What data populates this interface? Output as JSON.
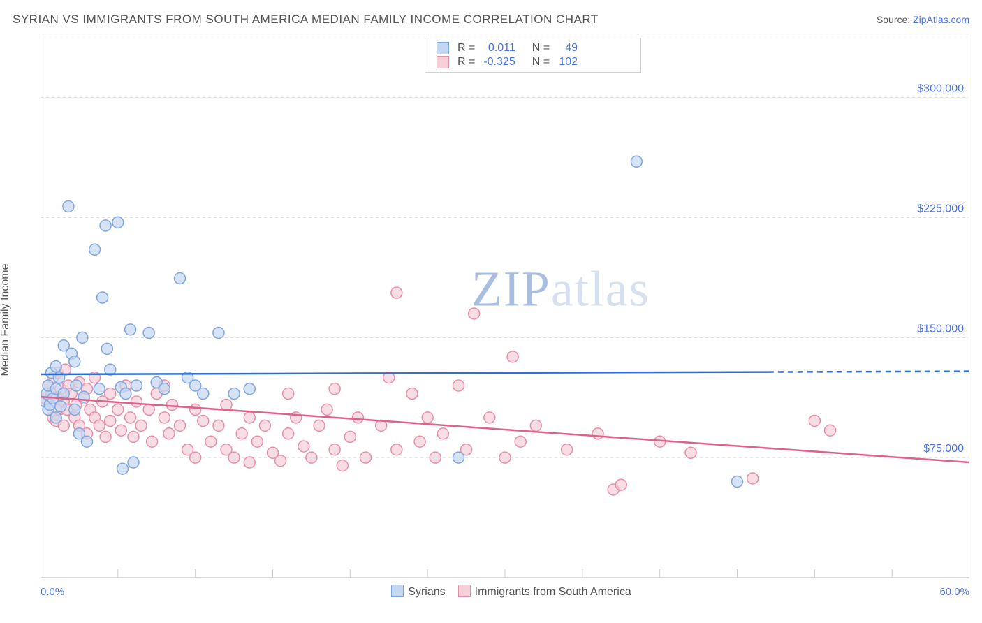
{
  "header": {
    "title": "SYRIAN VS IMMIGRANTS FROM SOUTH AMERICA MEDIAN FAMILY INCOME CORRELATION CHART",
    "source_prefix": "Source: ",
    "source_link": "ZipAtlas.com"
  },
  "chart": {
    "type": "scatter",
    "ylabel": "Median Family Income",
    "xlim": [
      0,
      60
    ],
    "ylim": [
      0,
      340000
    ],
    "y_gridlines": [
      75000,
      150000,
      225000,
      300000
    ],
    "y_tick_labels": [
      "$75,000",
      "$150,000",
      "$225,000",
      "$300,000"
    ],
    "x_tick_positions": [
      0,
      5,
      10,
      15,
      20,
      25,
      30,
      35,
      40,
      45,
      50,
      55
    ],
    "x_min_label": "0.0%",
    "x_max_label": "60.0%",
    "grid_color": "#d9d9d9",
    "axis_color": "#cccccc",
    "background_color": "#ffffff",
    "tick_label_color": "#4a74e8",
    "label_fontsize": 16,
    "marker_radius": 8,
    "marker_stroke_width": 1.5,
    "trend_line_width": 2.5,
    "watermark": "ZIPatlas",
    "series": [
      {
        "key": "syrians",
        "label": "Syrians",
        "fill": "#c4d7f2",
        "stroke": "#7ea6e0",
        "line_color": "#2f6fd0",
        "R": "0.011",
        "N": "49",
        "trend": {
          "x1": 0,
          "y1": 127000,
          "x2": 47,
          "y2": 128500,
          "dash_to_x": 60
        },
        "points": [
          [
            0.3,
            110000
          ],
          [
            0.4,
            115000
          ],
          [
            0.5,
            120000
          ],
          [
            0.5,
            105000
          ],
          [
            0.6,
            108000
          ],
          [
            0.7,
            128000
          ],
          [
            0.8,
            112000
          ],
          [
            1.0,
            118000
          ],
          [
            1.0,
            100000
          ],
          [
            1.2,
            125000
          ],
          [
            1.3,
            107000
          ],
          [
            1.5,
            115000
          ],
          [
            1.5,
            145000
          ],
          [
            1.8,
            232000
          ],
          [
            2.0,
            140000
          ],
          [
            2.2,
            135000
          ],
          [
            2.3,
            120000
          ],
          [
            2.5,
            90000
          ],
          [
            2.7,
            150000
          ],
          [
            2.8,
            113000
          ],
          [
            3.0,
            85000
          ],
          [
            3.5,
            205000
          ],
          [
            3.8,
            118000
          ],
          [
            4.0,
            175000
          ],
          [
            4.2,
            220000
          ],
          [
            4.3,
            143000
          ],
          [
            4.5,
            130000
          ],
          [
            5.0,
            222000
          ],
          [
            5.2,
            119000
          ],
          [
            5.3,
            68000
          ],
          [
            5.5,
            115000
          ],
          [
            5.8,
            155000
          ],
          [
            6.0,
            72000
          ],
          [
            6.2,
            120000
          ],
          [
            7.0,
            153000
          ],
          [
            7.5,
            122000
          ],
          [
            8.0,
            118000
          ],
          [
            9.0,
            187000
          ],
          [
            9.5,
            125000
          ],
          [
            10.0,
            120000
          ],
          [
            10.5,
            115000
          ],
          [
            11.5,
            153000
          ],
          [
            12.5,
            115000
          ],
          [
            13.5,
            118000
          ],
          [
            27.0,
            75000
          ],
          [
            38.5,
            260000
          ],
          [
            45.0,
            60000
          ],
          [
            1.0,
            132000
          ],
          [
            2.2,
            105000
          ]
        ]
      },
      {
        "key": "south_america",
        "label": "Immigrants from South America",
        "fill": "#f7cfd9",
        "stroke": "#e88fa8",
        "line_color": "#e06088",
        "R": "-0.325",
        "N": "102",
        "trend": {
          "x1": 0,
          "y1": 113000,
          "x2": 60,
          "y2": 72000
        },
        "points": [
          [
            0.3,
            112000
          ],
          [
            0.5,
            120000
          ],
          [
            0.6,
            108000
          ],
          [
            0.7,
            115000
          ],
          [
            0.8,
            100000
          ],
          [
            0.8,
            125000
          ],
          [
            1.0,
            113000
          ],
          [
            1.0,
            98000
          ],
          [
            1.1,
            128000
          ],
          [
            1.2,
            105000
          ],
          [
            1.3,
            118000
          ],
          [
            1.5,
            95000
          ],
          [
            1.5,
            110000
          ],
          [
            1.6,
            130000
          ],
          [
            1.7,
            105000
          ],
          [
            1.8,
            120000
          ],
          [
            2.0,
            115000
          ],
          [
            2.2,
            100000
          ],
          [
            2.3,
            108000
          ],
          [
            2.5,
            122000
          ],
          [
            2.5,
            95000
          ],
          [
            2.8,
            112000
          ],
          [
            3.0,
            118000
          ],
          [
            3.0,
            90000
          ],
          [
            3.2,
            105000
          ],
          [
            3.5,
            125000
          ],
          [
            3.5,
            100000
          ],
          [
            3.8,
            95000
          ],
          [
            4.0,
            110000
          ],
          [
            4.2,
            88000
          ],
          [
            4.5,
            115000
          ],
          [
            4.5,
            98000
          ],
          [
            5.0,
            105000
          ],
          [
            5.2,
            92000
          ],
          [
            5.5,
            120000
          ],
          [
            5.8,
            100000
          ],
          [
            6.0,
            88000
          ],
          [
            6.2,
            110000
          ],
          [
            6.5,
            95000
          ],
          [
            7.0,
            105000
          ],
          [
            7.2,
            85000
          ],
          [
            7.5,
            115000
          ],
          [
            8.0,
            100000
          ],
          [
            8.3,
            90000
          ],
          [
            8.5,
            108000
          ],
          [
            9.0,
            95000
          ],
          [
            9.5,
            80000
          ],
          [
            10.0,
            105000
          ],
          [
            10.0,
            75000
          ],
          [
            10.5,
            98000
          ],
          [
            11.0,
            85000
          ],
          [
            11.5,
            95000
          ],
          [
            12.0,
            80000
          ],
          [
            12.0,
            108000
          ],
          [
            12.5,
            75000
          ],
          [
            13.0,
            90000
          ],
          [
            13.5,
            100000
          ],
          [
            13.5,
            72000
          ],
          [
            14.0,
            85000
          ],
          [
            14.5,
            95000
          ],
          [
            15.0,
            78000
          ],
          [
            15.5,
            73000
          ],
          [
            16.0,
            90000
          ],
          [
            16.5,
            100000
          ],
          [
            17.0,
            82000
          ],
          [
            17.5,
            75000
          ],
          [
            18.0,
            95000
          ],
          [
            18.5,
            105000
          ],
          [
            19.0,
            80000
          ],
          [
            19.0,
            118000
          ],
          [
            20.0,
            88000
          ],
          [
            20.5,
            100000
          ],
          [
            21.0,
            75000
          ],
          [
            22.0,
            95000
          ],
          [
            22.5,
            125000
          ],
          [
            23.0,
            80000
          ],
          [
            23.0,
            178000
          ],
          [
            24.0,
            115000
          ],
          [
            24.5,
            85000
          ],
          [
            25.0,
            100000
          ],
          [
            25.5,
            75000
          ],
          [
            26.0,
            90000
          ],
          [
            27.0,
            120000
          ],
          [
            27.5,
            80000
          ],
          [
            28.0,
            165000
          ],
          [
            29.0,
            100000
          ],
          [
            30.0,
            75000
          ],
          [
            30.5,
            138000
          ],
          [
            31.0,
            85000
          ],
          [
            32.0,
            95000
          ],
          [
            34.0,
            80000
          ],
          [
            36.0,
            90000
          ],
          [
            37.0,
            55000
          ],
          [
            37.5,
            58000
          ],
          [
            40.0,
            85000
          ],
          [
            42.0,
            78000
          ],
          [
            46.0,
            62000
          ],
          [
            50.0,
            98000
          ],
          [
            51.0,
            92000
          ],
          [
            16.0,
            115000
          ],
          [
            19.5,
            70000
          ],
          [
            8.0,
            120000
          ]
        ]
      }
    ],
    "bottom_legend": {
      "items": [
        "syrians",
        "south_america"
      ]
    },
    "stat_box": {
      "border_color": "#d0d0d0",
      "R_label": "R =",
      "N_label": "N =",
      "value_color": "#4a74e8"
    }
  }
}
